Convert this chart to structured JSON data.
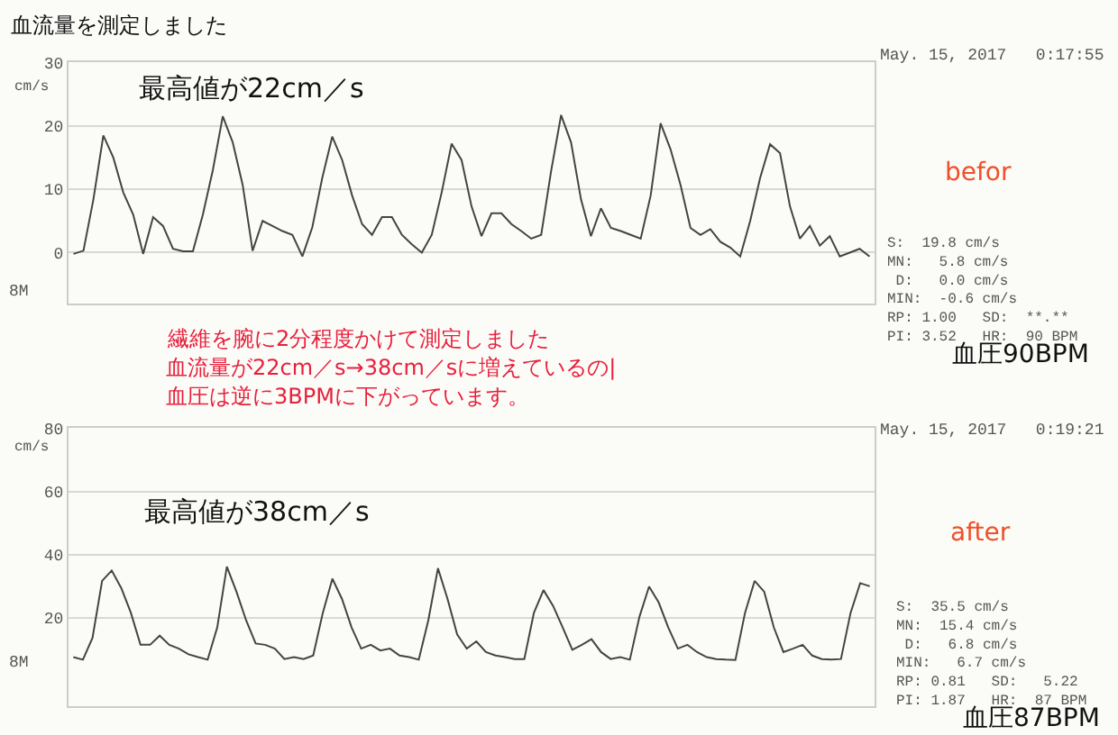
{
  "chart_data": [
    {
      "type": "line",
      "title": "血流量を測定しました",
      "ylabel": "cm/s",
      "annotations": [
        "最高値が22cm／s",
        "May. 15, 2017   0:17:55",
        "befor",
        "S:  19.8 cm/s\nMN:   5.8 cm/s\n D:   0.0 cm/s\nMIN:  -0.6 cm/s\nRP: 1.00   SD:  **.**\nPI: 3.52   HR:  90 BPM",
        "血圧90BPM",
        "繊維を腕に2分程度かけて測定しました",
        "血流量が22cm／s→38cm／sに増えているの|",
        "血圧は逆に3BPMに下がっています。",
        "8M"
      ],
      "categories": [
        null,
        null,
        null,
        null,
        null,
        null,
        null,
        null,
        null,
        null,
        null,
        null,
        null,
        null,
        null,
        null,
        null,
        null,
        null,
        null,
        null,
        null,
        null,
        null,
        null,
        null,
        null,
        null,
        null,
        null,
        null,
        null,
        null,
        null,
        null,
        null,
        null,
        null,
        null,
        null,
        null,
        null,
        null,
        null,
        null,
        null,
        null,
        null,
        null,
        null,
        null,
        null,
        null,
        null,
        null,
        null,
        null,
        null,
        null,
        null,
        null,
        null,
        null,
        null,
        null,
        null,
        null,
        null,
        null,
        null,
        null,
        null,
        null,
        null,
        null,
        null,
        null,
        null,
        null,
        null,
        null
      ],
      "series": [
        {
          "color": "#444444",
          "values": [
            -0.2,
            0.3,
            8.4,
            18.5,
            15,
            9.5,
            6,
            -0.2,
            5.6,
            4.2,
            0.6,
            0.2,
            0.2,
            6,
            13,
            21.5,
            17.4,
            10.7,
            0.3,
            5,
            4.2,
            3.4,
            2.8,
            -0.6,
            4,
            11.8,
            18.3,
            14.6,
            9,
            4.5,
            2.8,
            5.6,
            5.6,
            2.8,
            1.3,
            0,
            2.8,
            9.5,
            17.2,
            14.6,
            7.3,
            2.6,
            6.2,
            6.2,
            4.5,
            3.4,
            2.2,
            2.8,
            12.9,
            21.7,
            17.4,
            8.4,
            2.6,
            7,
            3.9,
            3.4,
            2.8,
            2.2,
            9,
            20.4,
            16.3,
            10.7,
            3.9,
            2.8,
            3.7,
            1.7,
            0.8,
            -0.6,
            5,
            11.8,
            17.1,
            15.7,
            7.3,
            2.2,
            4.2,
            1.1,
            2.6,
            -0.6,
            0,
            0.6,
            -0.6
          ]
        }
      ],
      "ylim": [
        -8,
        30
      ],
      "yticks": [
        0,
        10,
        20,
        30
      ],
      "grid": "y",
      "tick_labels": "y"
    },
    {
      "type": "line",
      "ylabel": "cm/s",
      "annotations": [
        "最高値が38cm／s",
        "May. 15, 2017   0:19:21",
        "after",
        "S:  35.5 cm/s\nMN:  15.4 cm/s\n D:   6.8 cm/s\nMIN:   6.7 cm/s\nRP: 0.81   SD:   5.22\nPI: 1.87   HR:  87 BPM",
        "血圧87BPM",
        "8M"
      ],
      "categories": [
        null,
        null,
        null,
        null,
        null,
        null,
        null,
        null,
        null,
        null,
        null,
        null,
        null,
        null,
        null,
        null,
        null,
        null,
        null,
        null,
        null,
        null,
        null,
        null,
        null,
        null,
        null,
        null,
        null,
        null,
        null,
        null,
        null,
        null,
        null,
        null,
        null,
        null,
        null,
        null,
        null,
        null,
        null,
        null,
        null,
        null,
        null,
        null,
        null,
        null,
        null,
        null,
        null,
        null,
        null,
        null,
        null,
        null,
        null,
        null,
        null,
        null,
        null,
        null,
        null,
        null,
        null,
        null,
        null,
        null,
        null,
        null,
        null,
        null,
        null,
        null,
        null,
        null,
        null,
        null,
        null,
        null,
        null,
        null
      ],
      "series": [
        {
          "color": "#444444",
          "values": [
            7.6,
            6.8,
            13.7,
            31.7,
            35,
            29.4,
            21.6,
            11.5,
            11.5,
            14.4,
            11.5,
            10.3,
            8.5,
            7.6,
            6.8,
            17,
            36.2,
            28.3,
            19.3,
            11.9,
            11.5,
            10.3,
            7,
            7.6,
            7,
            8.1,
            21.6,
            32.4,
            26,
            17,
            10.3,
            11.5,
            9.7,
            10.3,
            8.1,
            7.6,
            6.8,
            19.3,
            35.7,
            26,
            14.8,
            10.3,
            12.6,
            9.2,
            8.1,
            7.6,
            7,
            7,
            21.6,
            28.8,
            23.8,
            17,
            9.9,
            11.5,
            13.3,
            9.2,
            7,
            7.6,
            6.8,
            20.4,
            29.9,
            24.9,
            17,
            10.3,
            11.5,
            9.2,
            7.6,
            7,
            6.8,
            6.7,
            21.6,
            31.7,
            28.3,
            17,
            9.2,
            10.3,
            11.5,
            8.1,
            7,
            6.8,
            7,
            21.6,
            31,
            30
          ]
        }
      ],
      "ylim": [
        -8,
        80
      ],
      "yticks": [
        20,
        40,
        60,
        80
      ],
      "grid": "y",
      "tick_labels": "y"
    }
  ]
}
